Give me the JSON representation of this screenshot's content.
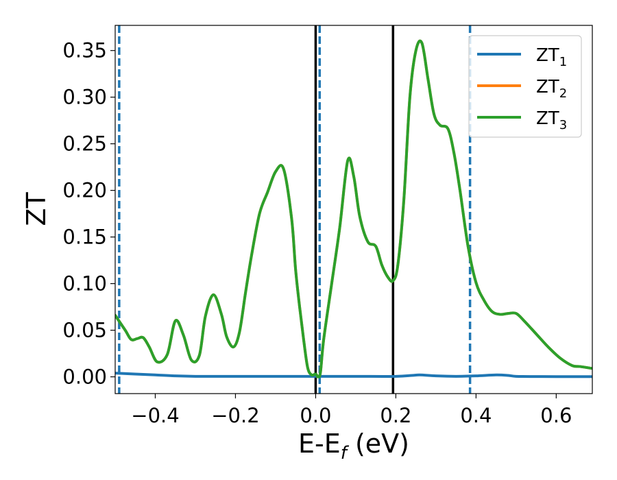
{
  "chart_data": {
    "type": "line",
    "xlabel_main": "E-E",
    "xlabel_sub": "f",
    "xlabel_unit": " (eV)",
    "ylabel": "ZT",
    "xlim": [
      -0.5,
      0.69
    ],
    "ylim": [
      -0.018,
      0.377
    ],
    "x_ticks": [
      -0.4,
      -0.2,
      0.0,
      0.2,
      0.4,
      0.6
    ],
    "x_tick_labels": [
      "−0.4",
      "−0.2",
      "0.0",
      "0.2",
      "0.4",
      "0.6"
    ],
    "y_ticks": [
      0.0,
      0.05,
      0.1,
      0.15,
      0.2,
      0.25,
      0.3,
      0.35
    ],
    "y_tick_labels": [
      "0.00",
      "0.05",
      "0.10",
      "0.15",
      "0.20",
      "0.25",
      "0.30",
      "0.35"
    ],
    "grid": false,
    "legend_position": "top-right",
    "vlines_solid": [
      0.0,
      0.193
    ],
    "vlines_dashed": [
      -0.49,
      0.01,
      0.385
    ],
    "vline_color_solid": "#000000",
    "vline_color_dashed": "#1f77b4",
    "series": [
      {
        "name": "ZT",
        "sub": "1",
        "color": "#1f77b4",
        "x": [
          -0.5,
          -0.45,
          -0.4,
          -0.35,
          -0.3,
          -0.25,
          -0.2,
          -0.1,
          0.0,
          0.1,
          0.2,
          0.24,
          0.26,
          0.3,
          0.35,
          0.4,
          0.45,
          0.48,
          0.5,
          0.55,
          0.6,
          0.69
        ],
        "y": [
          0.004,
          0.003,
          0.002,
          0.001,
          0.0005,
          0.0005,
          0.0005,
          0.0005,
          0.0005,
          0.0005,
          0.0005,
          0.0015,
          0.002,
          0.001,
          0.0005,
          0.001,
          0.002,
          0.0015,
          0.0005,
          0.0003,
          0.0002,
          0.0002
        ]
      },
      {
        "name": "ZT",
        "sub": "2",
        "color": "#ff7f0e",
        "x": [
          -0.5,
          -0.475,
          -0.46,
          -0.445,
          -0.43,
          -0.415,
          -0.395,
          -0.37,
          -0.35,
          -0.33,
          -0.31,
          -0.29,
          -0.275,
          -0.255,
          -0.235,
          -0.222,
          -0.205,
          -0.19,
          -0.175,
          -0.16,
          -0.14,
          -0.12,
          -0.1,
          -0.08,
          -0.06,
          -0.05,
          -0.04,
          -0.03,
          -0.02,
          -0.01,
          0.0,
          0.006,
          0.012,
          0.02,
          0.04,
          0.06,
          0.08,
          0.095,
          0.11,
          0.13,
          0.15,
          0.165,
          0.18,
          0.193,
          0.205,
          0.22,
          0.235,
          0.25,
          0.265,
          0.28,
          0.295,
          0.31,
          0.33,
          0.345,
          0.36,
          0.38,
          0.4,
          0.42,
          0.44,
          0.46,
          0.48,
          0.5,
          0.52,
          0.55,
          0.58,
          0.61,
          0.64,
          0.66,
          0.69
        ],
        "y": [
          0.066,
          0.05,
          0.04,
          0.041,
          0.042,
          0.032,
          0.016,
          0.024,
          0.06,
          0.045,
          0.018,
          0.023,
          0.065,
          0.088,
          0.067,
          0.043,
          0.032,
          0.048,
          0.09,
          0.13,
          0.175,
          0.198,
          0.22,
          0.223,
          0.17,
          0.115,
          0.075,
          0.04,
          0.01,
          0.002,
          0.003,
          0.0,
          0.005,
          0.04,
          0.1,
          0.16,
          0.232,
          0.215,
          0.172,
          0.145,
          0.14,
          0.12,
          0.107,
          0.103,
          0.12,
          0.19,
          0.3,
          0.35,
          0.358,
          0.32,
          0.282,
          0.27,
          0.266,
          0.24,
          0.2,
          0.14,
          0.101,
          0.082,
          0.07,
          0.067,
          0.068,
          0.068,
          0.06,
          0.046,
          0.032,
          0.02,
          0.012,
          0.011,
          0.009
        ]
      },
      {
        "name": "ZT",
        "sub": "3",
        "color": "#2ca02c",
        "x": [
          -0.5,
          -0.475,
          -0.46,
          -0.445,
          -0.43,
          -0.415,
          -0.395,
          -0.37,
          -0.35,
          -0.33,
          -0.31,
          -0.29,
          -0.275,
          -0.255,
          -0.235,
          -0.222,
          -0.205,
          -0.19,
          -0.175,
          -0.16,
          -0.14,
          -0.12,
          -0.1,
          -0.08,
          -0.06,
          -0.05,
          -0.04,
          -0.03,
          -0.02,
          -0.01,
          0.0,
          0.006,
          0.012,
          0.02,
          0.04,
          0.06,
          0.08,
          0.095,
          0.11,
          0.13,
          0.15,
          0.165,
          0.18,
          0.193,
          0.205,
          0.22,
          0.235,
          0.25,
          0.265,
          0.28,
          0.295,
          0.31,
          0.33,
          0.345,
          0.36,
          0.38,
          0.4,
          0.42,
          0.44,
          0.46,
          0.48,
          0.5,
          0.52,
          0.55,
          0.58,
          0.61,
          0.64,
          0.66,
          0.69
        ],
        "y": [
          0.066,
          0.05,
          0.04,
          0.041,
          0.042,
          0.032,
          0.016,
          0.024,
          0.06,
          0.045,
          0.018,
          0.023,
          0.065,
          0.088,
          0.067,
          0.043,
          0.032,
          0.048,
          0.09,
          0.13,
          0.175,
          0.198,
          0.22,
          0.223,
          0.17,
          0.115,
          0.075,
          0.04,
          0.01,
          0.002,
          0.003,
          0.0,
          0.005,
          0.04,
          0.1,
          0.16,
          0.232,
          0.215,
          0.172,
          0.145,
          0.14,
          0.12,
          0.107,
          0.103,
          0.12,
          0.19,
          0.3,
          0.35,
          0.358,
          0.32,
          0.282,
          0.27,
          0.266,
          0.24,
          0.2,
          0.14,
          0.101,
          0.082,
          0.07,
          0.067,
          0.068,
          0.068,
          0.06,
          0.046,
          0.032,
          0.02,
          0.012,
          0.011,
          0.009
        ]
      }
    ]
  }
}
